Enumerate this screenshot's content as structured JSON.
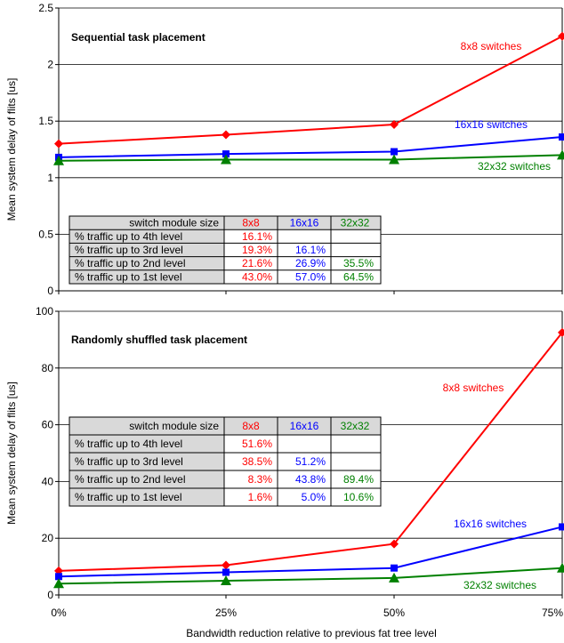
{
  "xlabel": "Bandwidth reduction relative to previous fat tree level",
  "colors": {
    "s8": "#ff0000",
    "s16": "#0000ff",
    "s32": "#008000",
    "grid": "#000000",
    "header_bg": "#d9d9d9"
  },
  "chart_data": [
    {
      "type": "line",
      "title": "Sequential task placement",
      "ylabel": "Mean system delay of flits [us]",
      "ylim": [
        0,
        2.5
      ],
      "yticks": [
        "0",
        "0.5",
        "1",
        "1.5",
        "2",
        "2.5"
      ],
      "x": [
        "0%",
        "25%",
        "50%",
        "75%"
      ],
      "grid": true,
      "series": [
        {
          "name": "8x8 switches",
          "color": "#ff0000",
          "marker": "diamond",
          "values": [
            1.3,
            1.38,
            1.47,
            2.25
          ]
        },
        {
          "name": "16x16 switches",
          "color": "#0000ff",
          "marker": "square",
          "values": [
            1.18,
            1.21,
            1.23,
            1.36
          ]
        },
        {
          "name": "32x32 switches",
          "color": "#008000",
          "marker": "triangle",
          "values": [
            1.15,
            1.16,
            1.16,
            1.2
          ]
        }
      ],
      "table": {
        "header": [
          "switch module size",
          "8x8",
          "16x16",
          "32x32"
        ],
        "rows": [
          [
            "% traffic up to 4th level",
            "16.1%",
            "",
            ""
          ],
          [
            "% traffic up to 3rd level",
            "19.3%",
            "16.1%",
            ""
          ],
          [
            "% traffic up to 2nd level",
            "21.6%",
            "26.9%",
            "35.5%"
          ],
          [
            "% traffic up to 1st level",
            "43.0%",
            "57.0%",
            "64.5%"
          ]
        ]
      }
    },
    {
      "type": "line",
      "title": "Randomly shuffled task placement",
      "ylabel": "Mean system delay of flits [us]",
      "ylim": [
        0,
        100
      ],
      "yticks": [
        "0",
        "20",
        "40",
        "60",
        "80",
        "100"
      ],
      "x": [
        "0%",
        "25%",
        "50%",
        "75%"
      ],
      "grid": true,
      "series": [
        {
          "name": "8x8 switches",
          "color": "#ff0000",
          "marker": "diamond",
          "values": [
            8.5,
            10.5,
            18.0,
            92.5
          ]
        },
        {
          "name": "16x16 switches",
          "color": "#0000ff",
          "marker": "square",
          "values": [
            6.5,
            8.0,
            9.5,
            24.0
          ]
        },
        {
          "name": "32x32 switches",
          "color": "#008000",
          "marker": "triangle",
          "values": [
            4.0,
            5.0,
            6.0,
            9.5
          ]
        }
      ],
      "table": {
        "header": [
          "switch module size",
          "8x8",
          "16x16",
          "32x32"
        ],
        "rows": [
          [
            "% traffic up to 4th level",
            "51.6%",
            "",
            ""
          ],
          [
            "% traffic up to 3rd level",
            "38.5%",
            "51.2%",
            ""
          ],
          [
            "% traffic up to 2nd level",
            "8.3%",
            "43.8%",
            "89.4%"
          ],
          [
            "% traffic up to 1st level",
            "1.6%",
            "5.0%",
            "10.6%"
          ]
        ]
      }
    }
  ]
}
